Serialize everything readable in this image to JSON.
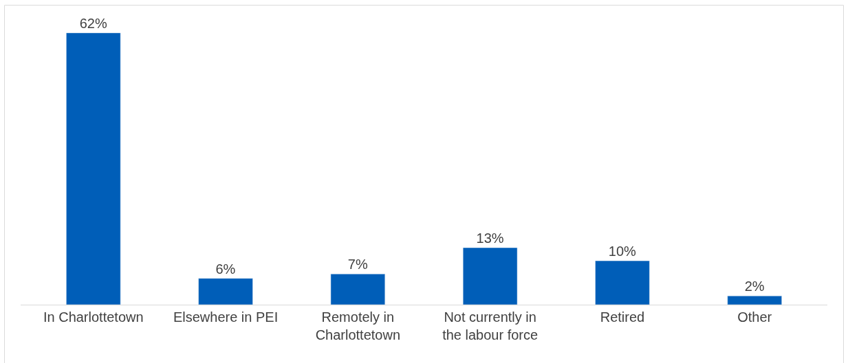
{
  "chart_data": {
    "type": "bar",
    "categories": [
      "In Charlottetown",
      "Elsewhere in PEI",
      "Remotely in Charlottetown",
      "Not currently in the labour force",
      "Retired",
      "Other"
    ],
    "values": [
      62,
      6,
      7,
      13,
      10,
      2
    ],
    "value_labels": [
      "62%",
      "6%",
      "7%",
      "13%",
      "10%",
      "2%"
    ],
    "color": "#005eb8"
  }
}
